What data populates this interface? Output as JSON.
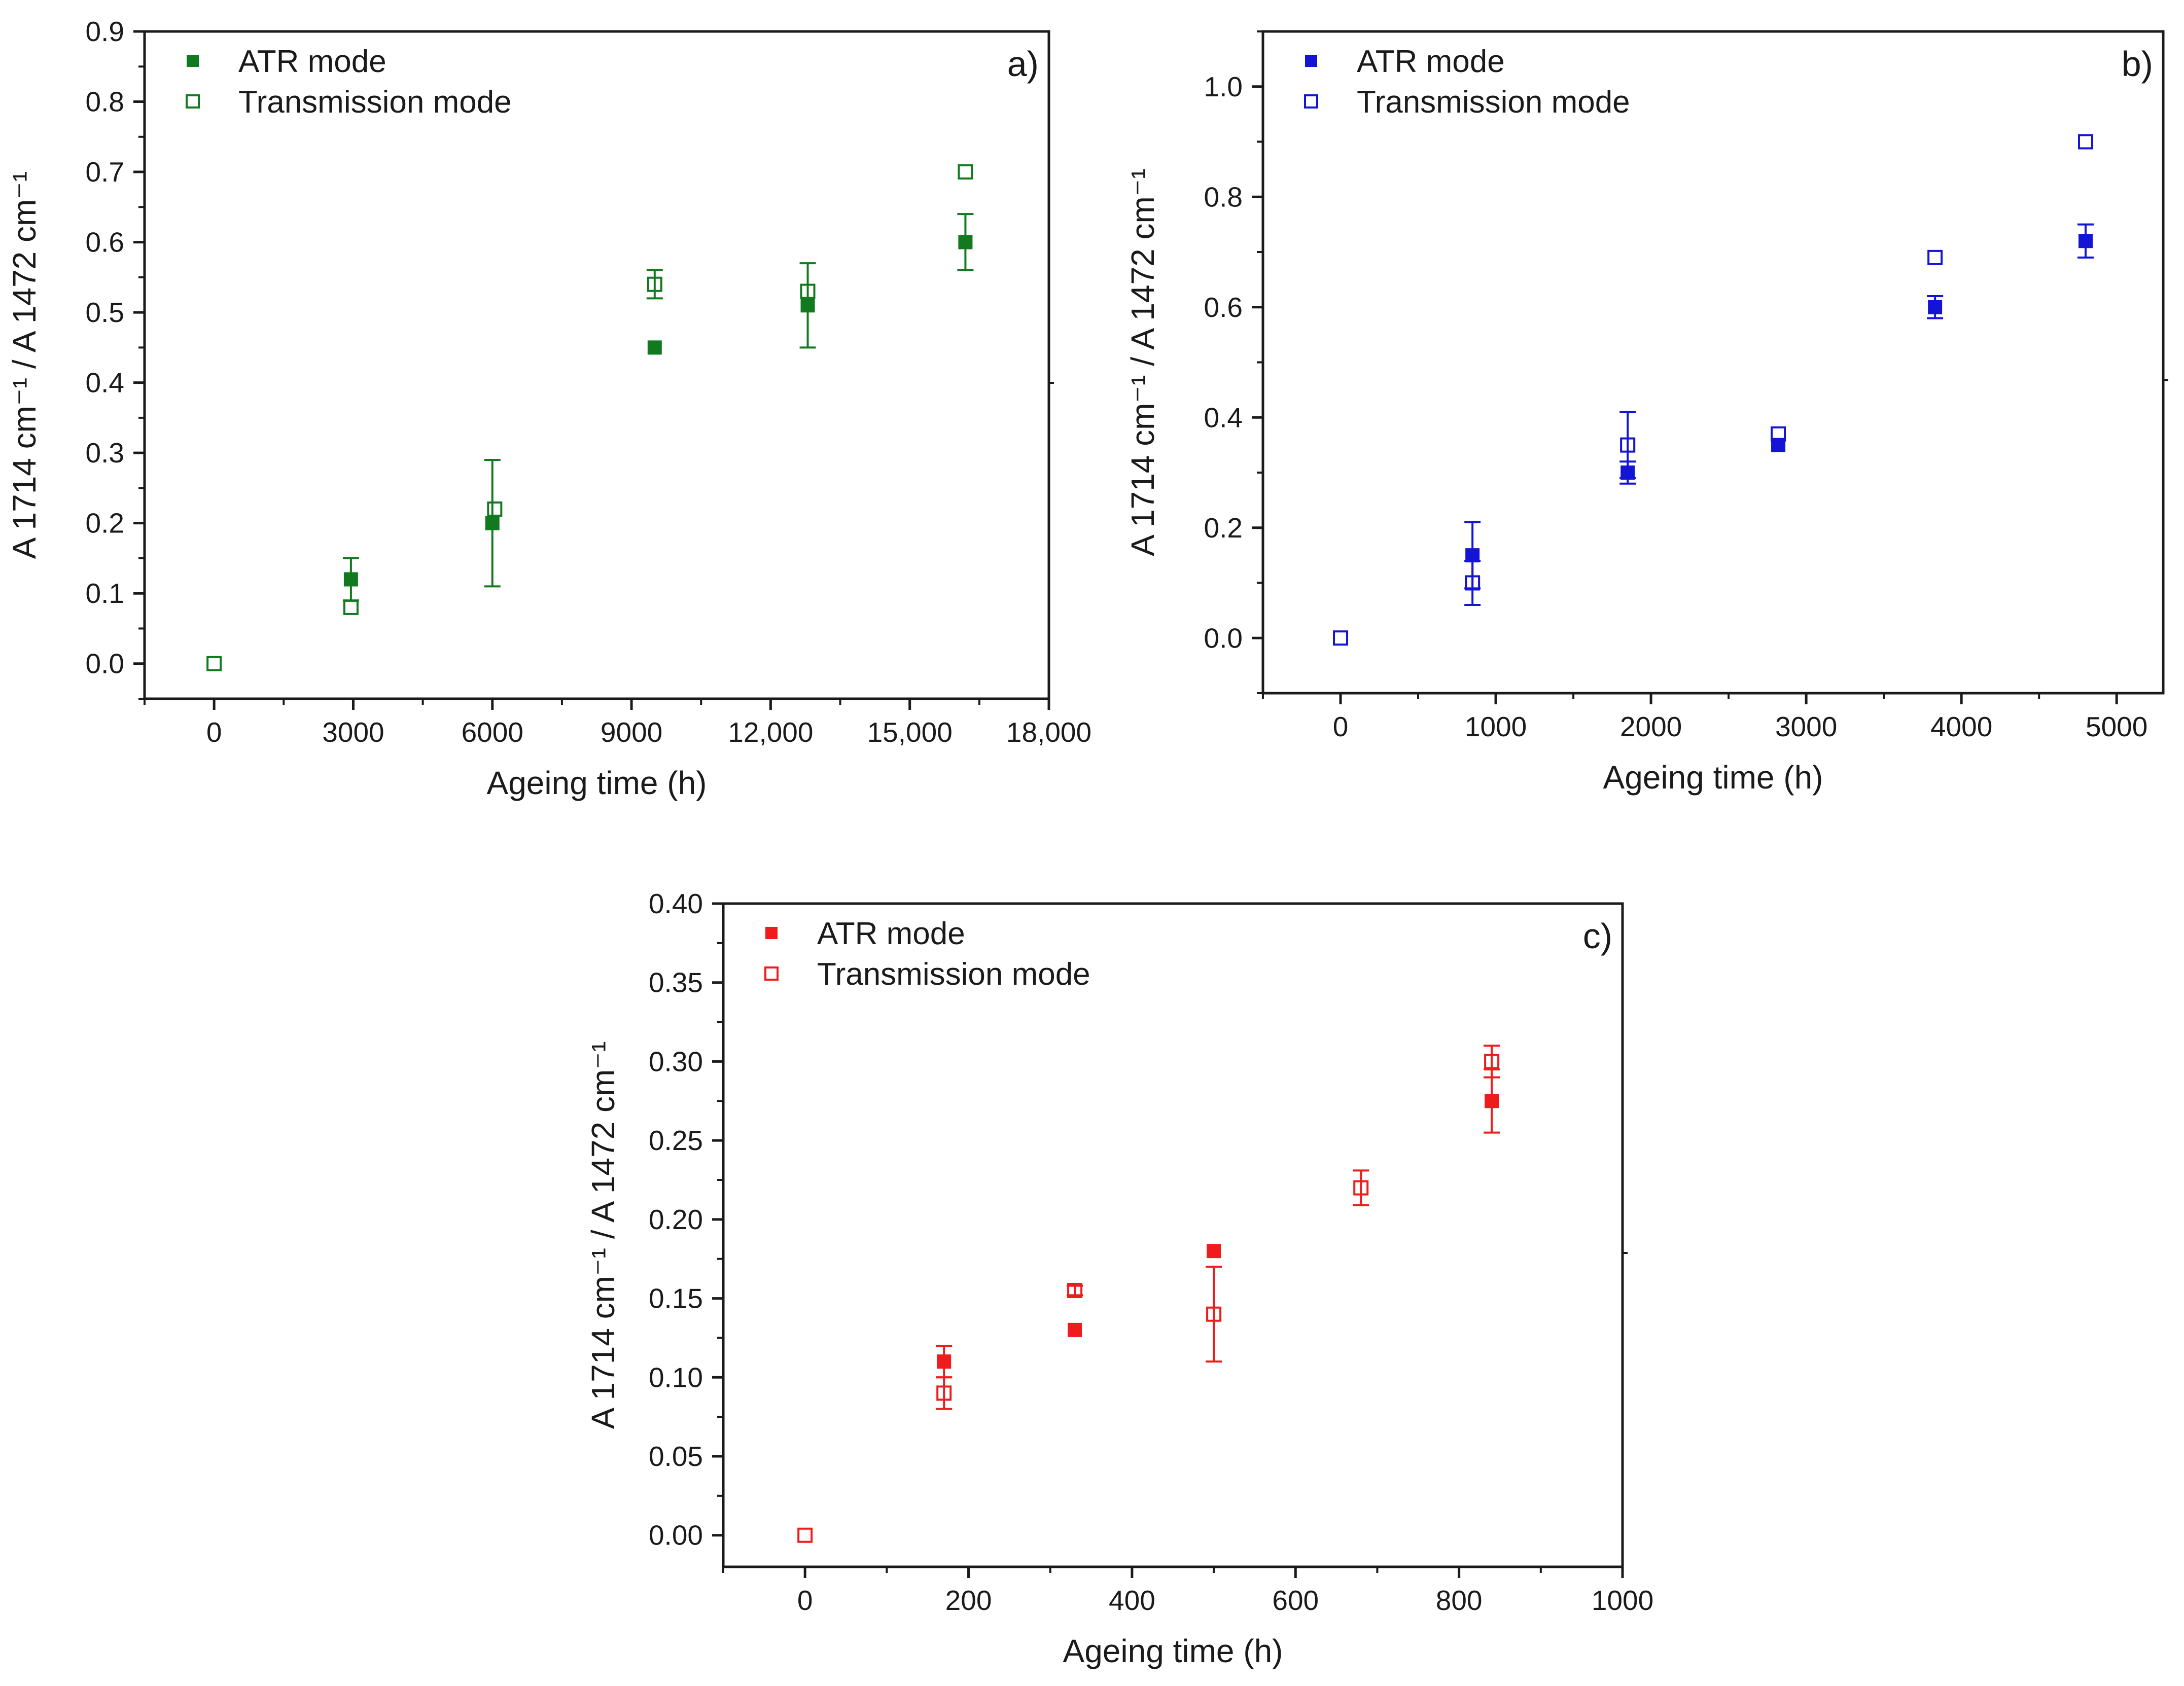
{
  "chart_data": [
    {
      "panel": "a)",
      "type": "scatter",
      "color": "#127a1e",
      "xlabel": "Ageing time (h)",
      "ylabel": "A 1714 cm⁻¹ / A 1472 cm⁻¹",
      "xlim": [
        -1500,
        18000
      ],
      "ylim": [
        -0.05,
        0.9
      ],
      "xticks": [
        0,
        3000,
        6000,
        9000,
        12000,
        15000,
        18000
      ],
      "xtick_labels": [
        "0",
        "3000",
        "6000",
        "9000",
        "12,000",
        "15,000",
        "18,000"
      ],
      "yticks": [
        0.0,
        0.1,
        0.2,
        0.3,
        0.4,
        0.5,
        0.6,
        0.7,
        0.8,
        0.9
      ],
      "ytick_labels": [
        "0.0",
        "0.1",
        "0.2",
        "0.3",
        "0.4",
        "0.5",
        "0.6",
        "0.7",
        "0.8",
        "0.9"
      ],
      "legend_position": "top-left",
      "series": [
        {
          "name": "ATR mode",
          "marker": "filled-square",
          "points": [
            {
              "x": 2950,
              "y": 0.12,
              "err": 0.03
            },
            {
              "x": 6000,
              "y": 0.2,
              "err": 0.09
            },
            {
              "x": 9500,
              "y": 0.45,
              "err": 0
            },
            {
              "x": 12800,
              "y": 0.51,
              "err": 0.06
            },
            {
              "x": 16200,
              "y": 0.6,
              "err": 0.04
            }
          ]
        },
        {
          "name": "Transmission mode",
          "marker": "open-square",
          "points": [
            {
              "x": 0,
              "y": 0.0,
              "err": 0
            },
            {
              "x": 2950,
              "y": 0.08,
              "err": 0
            },
            {
              "x": 6050,
              "y": 0.22,
              "err": 0
            },
            {
              "x": 9500,
              "y": 0.54,
              "err": 0.02
            },
            {
              "x": 12800,
              "y": 0.53,
              "err": 0
            },
            {
              "x": 16200,
              "y": 0.7,
              "err": 0
            }
          ]
        }
      ]
    },
    {
      "panel": "b)",
      "type": "scatter",
      "color": "#1414d6",
      "xlabel": "Ageing time (h)",
      "ylabel": "A 1714 cm⁻¹ / A 1472 cm⁻¹",
      "xlim": [
        -500,
        5300
      ],
      "ylim": [
        -0.1,
        1.1
      ],
      "xticks": [
        0,
        1000,
        2000,
        3000,
        4000,
        5000
      ],
      "xtick_labels": [
        "0",
        "1000",
        "2000",
        "3000",
        "4000",
        "5000"
      ],
      "yticks": [
        0.0,
        0.2,
        0.4,
        0.6,
        0.8,
        1.0
      ],
      "ytick_labels": [
        "0.0",
        "0.2",
        "0.4",
        "0.6",
        "0.8",
        "1.0"
      ],
      "legend_position": "top-left",
      "series": [
        {
          "name": "ATR mode",
          "marker": "filled-square",
          "points": [
            {
              "x": 850,
              "y": 0.15,
              "err": 0.06
            },
            {
              "x": 1850,
              "y": 0.3,
              "err": 0.02
            },
            {
              "x": 2820,
              "y": 0.35,
              "err": 0
            },
            {
              "x": 3830,
              "y": 0.6,
              "err": 0.02
            },
            {
              "x": 4800,
              "y": 0.72,
              "err": 0.03
            }
          ]
        },
        {
          "name": "Transmission mode",
          "marker": "open-square",
          "points": [
            {
              "x": 0,
              "y": 0.0,
              "err": 0
            },
            {
              "x": 850,
              "y": 0.1,
              "err": 0.04
            },
            {
              "x": 1850,
              "y": 0.35,
              "err": 0.06
            },
            {
              "x": 2820,
              "y": 0.37,
              "err": 0
            },
            {
              "x": 3830,
              "y": 0.69,
              "err": 0
            },
            {
              "x": 4800,
              "y": 0.9,
              "err": 0
            }
          ]
        }
      ]
    },
    {
      "panel": "c)",
      "type": "scatter",
      "color": "#ee1c1c",
      "xlabel": "Ageing time (h)",
      "ylabel": "A 1714 cm⁻¹ / A 1472 cm⁻¹",
      "xlim": [
        -100,
        1000
      ],
      "ylim": [
        -0.02,
        0.4
      ],
      "xticks": [
        0,
        200,
        400,
        600,
        800,
        1000
      ],
      "xtick_labels": [
        "0",
        "200",
        "400",
        "600",
        "800",
        "1000"
      ],
      "yticks": [
        0.0,
        0.05,
        0.1,
        0.15,
        0.2,
        0.25,
        0.3,
        0.35,
        0.4
      ],
      "ytick_labels": [
        "0.00",
        "0.05",
        "0.10",
        "0.15",
        "0.20",
        "0.25",
        "0.30",
        "0.35",
        "0.40"
      ],
      "legend_position": "top-left",
      "series": [
        {
          "name": "ATR mode",
          "marker": "filled-square",
          "points": [
            {
              "x": 170,
              "y": 0.11,
              "err": 0.01
            },
            {
              "x": 330,
              "y": 0.13,
              "err": 0
            },
            {
              "x": 500,
              "y": 0.18,
              "err": 0
            },
            {
              "x": 840,
              "y": 0.275,
              "err": 0.02
            }
          ]
        },
        {
          "name": "Transmission mode",
          "marker": "open-square",
          "points": [
            {
              "x": 0,
              "y": 0.0,
              "err": 0
            },
            {
              "x": 170,
              "y": 0.09,
              "err": 0.01
            },
            {
              "x": 330,
              "y": 0.155,
              "err": 0.003
            },
            {
              "x": 500,
              "y": 0.14,
              "err": 0.03
            },
            {
              "x": 680,
              "y": 0.22,
              "err": 0.011
            },
            {
              "x": 840,
              "y": 0.3,
              "err": 0.01
            }
          ]
        }
      ]
    }
  ]
}
